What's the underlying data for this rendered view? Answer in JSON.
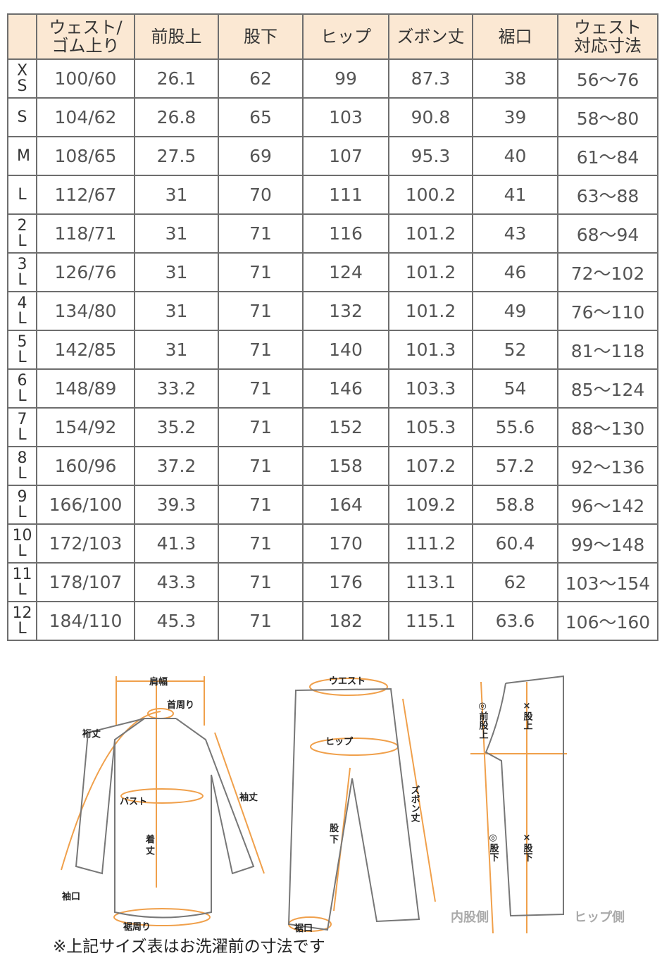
{
  "table": {
    "headers": [
      "",
      "ウェスト/\nゴム上り",
      "前股上",
      "股下",
      "ヒップ",
      "ズボン丈",
      "裾口",
      "ウェスト\n対応寸法"
    ],
    "rows": [
      [
        "XS",
        "100/60",
        "26.1",
        "62",
        "99",
        "87.3",
        "38",
        "56～76"
      ],
      [
        "S",
        "104/62",
        "26.8",
        "65",
        "103",
        "90.8",
        "39",
        "58～80"
      ],
      [
        "M",
        "108/65",
        "27.5",
        "69",
        "107",
        "95.3",
        "40",
        "61～84"
      ],
      [
        "L",
        "112/67",
        "31",
        "70",
        "111",
        "100.2",
        "41",
        "63～88"
      ],
      [
        "2L",
        "118/71",
        "31",
        "71",
        "116",
        "101.2",
        "43",
        "68～94"
      ],
      [
        "3L",
        "126/76",
        "31",
        "71",
        "124",
        "101.2",
        "46",
        "72～102"
      ],
      [
        "4L",
        "134/80",
        "31",
        "71",
        "132",
        "101.2",
        "49",
        "76～110"
      ],
      [
        "5L",
        "142/85",
        "31",
        "71",
        "140",
        "101.3",
        "52",
        "81～118"
      ],
      [
        "6L",
        "148/89",
        "33.2",
        "71",
        "146",
        "103.3",
        "54",
        "85～124"
      ],
      [
        "7L",
        "154/92",
        "35.2",
        "71",
        "152",
        "105.3",
        "55.6",
        "88～130"
      ],
      [
        "8L",
        "160/96",
        "37.2",
        "71",
        "158",
        "107.2",
        "57.2",
        "92～136"
      ],
      [
        "9L",
        "166/100",
        "39.3",
        "71",
        "164",
        "109.2",
        "58.8",
        "96～142"
      ],
      [
        "10L",
        "172/103",
        "41.3",
        "71",
        "170",
        "111.2",
        "60.4",
        "99～148"
      ],
      [
        "11L",
        "178/107",
        "43.3",
        "71",
        "176",
        "113.1",
        "62",
        "103～154"
      ],
      [
        "12L",
        "184/110",
        "45.3",
        "71",
        "182",
        "115.1",
        "63.6",
        "106～160"
      ]
    ]
  },
  "diagram": {
    "shirt": {
      "shoulder": "肩幅",
      "neck": "首周り",
      "yuki": "裄丈",
      "bust": "バスト",
      "sleeve": "袖丈",
      "length1": "着",
      "length2": "丈",
      "cuff": "袖口",
      "hem": "裾周り"
    },
    "pants": {
      "waist": "ウエスト",
      "hip": "ヒップ",
      "inseam1": "股",
      "inseam2": "下",
      "length": "ズボン丈",
      "hem": "裾口"
    },
    "side": {
      "rise_ok": "◎前股上",
      "rise_ng": "×股上",
      "inseam_ok": "◎股下",
      "inseam_ng": "×股下",
      "inner": "内股側",
      "hip_side": "ヒップ側"
    },
    "accent_color": "#f0a04b"
  },
  "note": "※上記サイズ表はお洗濯前の寸法です"
}
